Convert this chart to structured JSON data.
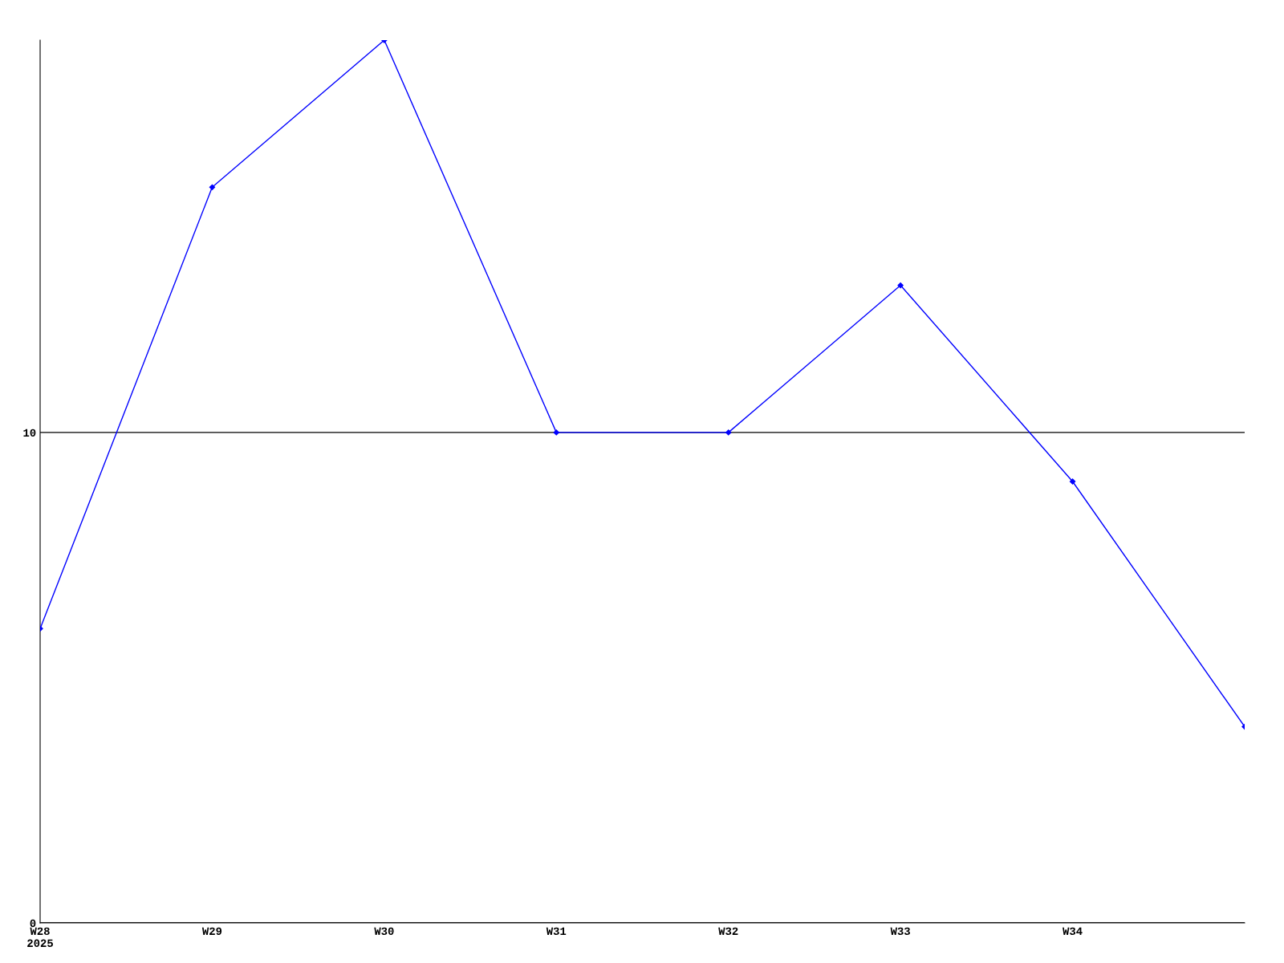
{
  "chart_data": {
    "type": "line",
    "categories": [
      "W28\n2025",
      "W29",
      "W30",
      "W31",
      "W32",
      "W33",
      "W34",
      null
    ],
    "series": [
      {
        "color": "#0000ff",
        "values": [
          6,
          15,
          18,
          10,
          10,
          13,
          9,
          4
        ]
      }
    ],
    "ylim": [
      0,
      18
    ],
    "yticks": [
      0,
      10
    ],
    "grid": "y",
    "marker": "diamond",
    "line_style": "solid"
  }
}
